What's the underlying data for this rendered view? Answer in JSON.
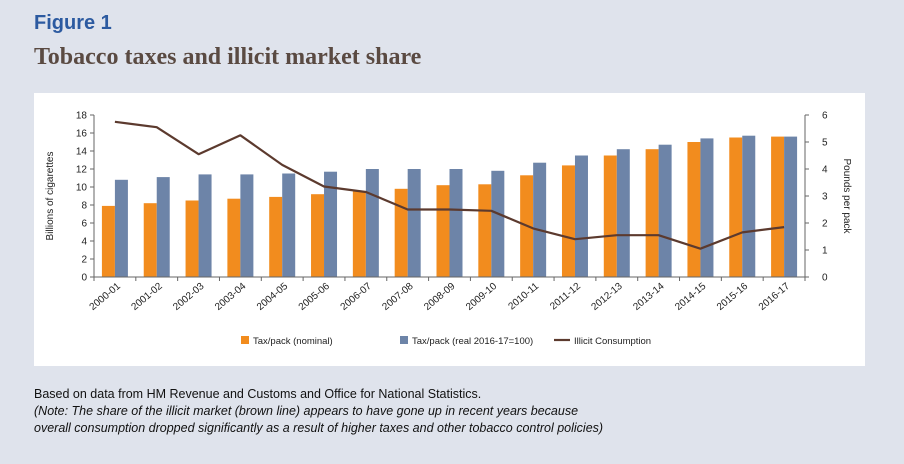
{
  "figure_label": "Figure 1",
  "title": "Tobacco taxes and illicit market share",
  "source_text": "Based on data from HM Revenue and Customs and Office for National Statistics.",
  "note_lines": [
    "(Note: The share of the illicit market (brown line) appears to have gone up in recent years because",
    "overall consumption dropped significantly as a result of higher taxes and other tobacco control policies)"
  ],
  "colors": {
    "nominal": "#f28c1e",
    "real": "#6d84a8",
    "illicit": "#5c3a2e",
    "axis": "#666666"
  },
  "chart_data": {
    "type": "bar",
    "categories": [
      "2000-01",
      "2001-02",
      "2002-03",
      "2003-04",
      "2004-05",
      "2005-06",
      "2006-07",
      "2007-08",
      "2008-09",
      "2009-10",
      "2010-11",
      "2011-12",
      "2012-13",
      "2013-14",
      "2014-15",
      "2015-16",
      "2016-17"
    ],
    "series": [
      {
        "name": "Tax/pack (nominal)",
        "kind": "bar",
        "axis": "left",
        "values": [
          7.9,
          8.2,
          8.5,
          8.7,
          8.9,
          9.2,
          9.5,
          9.8,
          10.2,
          10.3,
          11.3,
          12.4,
          13.5,
          14.2,
          15.0,
          15.5,
          15.6
        ]
      },
      {
        "name": "Tax/pack (real 2016-17=100)",
        "kind": "bar",
        "axis": "left",
        "values": [
          10.8,
          11.1,
          11.4,
          11.4,
          11.5,
          11.7,
          12.0,
          12.0,
          12.0,
          11.8,
          12.7,
          13.5,
          14.2,
          14.7,
          15.4,
          15.7,
          15.6
        ]
      },
      {
        "name": "Illicit Consumption",
        "kind": "line",
        "axis": "right",
        "values": [
          5.75,
          5.55,
          4.55,
          5.25,
          4.15,
          3.35,
          3.15,
          2.5,
          2.5,
          2.45,
          1.8,
          1.4,
          1.55,
          1.55,
          1.05,
          1.65,
          1.85
        ]
      }
    ],
    "ylabel": "Billions of cigarettes",
    "y2label": "Pounds per pack",
    "ylim": [
      0,
      18
    ],
    "y2lim": [
      0,
      6
    ],
    "yticks": [
      "0",
      "2",
      "4",
      "6",
      "8",
      "10",
      "12",
      "14",
      "16",
      "18"
    ],
    "y2ticks": [
      "0",
      "1",
      "2",
      "3",
      "4",
      "5",
      "6"
    ],
    "grid": false,
    "legend_position": "bottom"
  }
}
